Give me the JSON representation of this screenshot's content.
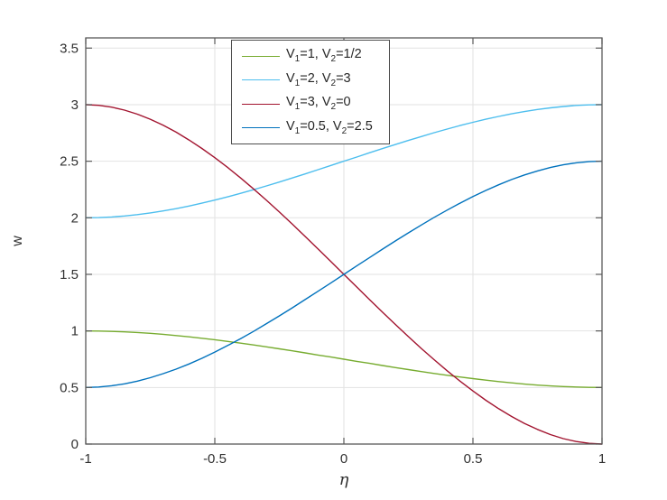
{
  "chart_data": {
    "type": "line",
    "title": "",
    "xlabel": "η",
    "ylabel": "w",
    "xlim": [
      -1,
      1
    ],
    "ylim": [
      0,
      3.59
    ],
    "xticks": [
      -1,
      -0.5,
      0,
      0.5,
      1
    ],
    "xtick_labels": [
      "-1",
      "-0.5",
      "0",
      "0.5",
      "1"
    ],
    "yticks": [
      0,
      0.5,
      1,
      1.5,
      2,
      2.5,
      3,
      3.5
    ],
    "ytick_labels": [
      "0",
      "0.5",
      "1",
      "1.5",
      "2",
      "2.5",
      "3",
      "3.5"
    ],
    "grid": true,
    "legend": {
      "position": "north-inside",
      "border_color": "#4d4d4d",
      "background": "#ffffff"
    },
    "style": {
      "axis_color": "#595959",
      "grid_color": "#e2e2e2",
      "tick_text_color": "#303030",
      "background": "#ffffff",
      "line_width": 1.4,
      "tick_length": 7
    },
    "x": [
      -1,
      -0.95,
      -0.9,
      -0.85,
      -0.8,
      -0.75,
      -0.7,
      -0.65,
      -0.6,
      -0.55,
      -0.5,
      -0.45,
      -0.4,
      -0.35,
      -0.3,
      -0.25,
      -0.2,
      -0.15,
      -0.1,
      -0.05,
      0,
      0.05,
      0.1,
      0.15,
      0.2,
      0.25,
      0.3,
      0.35,
      0.4,
      0.45,
      0.5,
      0.55,
      0.6,
      0.65,
      0.7,
      0.75,
      0.8,
      0.85,
      0.9,
      0.95,
      1
    ],
    "series": [
      {
        "name": "V1=1, V2=1/2",
        "label_parts": [
          [
            "V",
            false
          ],
          [
            "1",
            true
          ],
          [
            "=1, V",
            false
          ],
          [
            "2",
            true
          ],
          [
            "=1/2",
            false
          ]
        ],
        "color": "#77AC30",
        "values": [
          1,
          0.999,
          0.996,
          0.992,
          0.986,
          0.979,
          0.97,
          0.959,
          0.948,
          0.935,
          0.922,
          0.907,
          0.892,
          0.876,
          0.859,
          0.842,
          0.824,
          0.806,
          0.787,
          0.769,
          0.75,
          0.731,
          0.713,
          0.694,
          0.676,
          0.658,
          0.641,
          0.624,
          0.608,
          0.593,
          0.578,
          0.565,
          0.552,
          0.541,
          0.53,
          0.521,
          0.514,
          0.508,
          0.504,
          0.501,
          0.5
        ]
      },
      {
        "name": "V1=2, V2=3",
        "label_parts": [
          [
            "V",
            false
          ],
          [
            "1",
            true
          ],
          [
            "=2, V",
            false
          ],
          [
            "2",
            true
          ],
          [
            "=3",
            false
          ]
        ],
        "color": "#4DBEEE",
        "values": [
          2,
          2.002,
          2.007,
          2.016,
          2.028,
          2.043,
          2.061,
          2.081,
          2.104,
          2.129,
          2.156,
          2.185,
          2.216,
          2.248,
          2.282,
          2.316,
          2.352,
          2.388,
          2.425,
          2.463,
          2.5,
          2.537,
          2.575,
          2.612,
          2.648,
          2.684,
          2.718,
          2.752,
          2.784,
          2.815,
          2.844,
          2.871,
          2.896,
          2.919,
          2.939,
          2.957,
          2.972,
          2.984,
          2.993,
          2.998,
          3
        ]
      },
      {
        "name": "V1=3, V2=0",
        "label_parts": [
          [
            "V",
            false
          ],
          [
            "1",
            true
          ],
          [
            "=3, V",
            false
          ],
          [
            "2",
            true
          ],
          [
            "=0",
            false
          ]
        ],
        "color": "#A2142F",
        "values": [
          3,
          2.994,
          2.978,
          2.952,
          2.916,
          2.871,
          2.818,
          2.757,
          2.688,
          2.613,
          2.531,
          2.444,
          2.352,
          2.255,
          2.155,
          2.051,
          1.944,
          1.835,
          1.724,
          1.612,
          1.5,
          1.388,
          1.276,
          1.165,
          1.056,
          0.949,
          0.845,
          0.745,
          0.648,
          0.556,
          0.469,
          0.387,
          0.312,
          0.243,
          0.182,
          0.129,
          0.084,
          0.048,
          0.022,
          0.006,
          0
        ]
      },
      {
        "name": "V1=0.5, V2=2.5",
        "label_parts": [
          [
            "V",
            false
          ],
          [
            "1",
            true
          ],
          [
            "=0.5, V",
            false
          ],
          [
            "2",
            true
          ],
          [
            "=2.5",
            false
          ]
        ],
        "color": "#0072BD",
        "values": [
          0.5,
          0.504,
          0.515,
          0.532,
          0.556,
          0.586,
          0.622,
          0.662,
          0.708,
          0.758,
          0.813,
          0.871,
          0.932,
          0.996,
          1.064,
          1.133,
          1.204,
          1.277,
          1.351,
          1.425,
          1.5,
          1.575,
          1.649,
          1.723,
          1.796,
          1.867,
          1.936,
          2.004,
          2.068,
          2.129,
          2.188,
          2.242,
          2.292,
          2.338,
          2.379,
          2.414,
          2.444,
          2.468,
          2.486,
          2.496,
          2.5
        ]
      }
    ]
  }
}
